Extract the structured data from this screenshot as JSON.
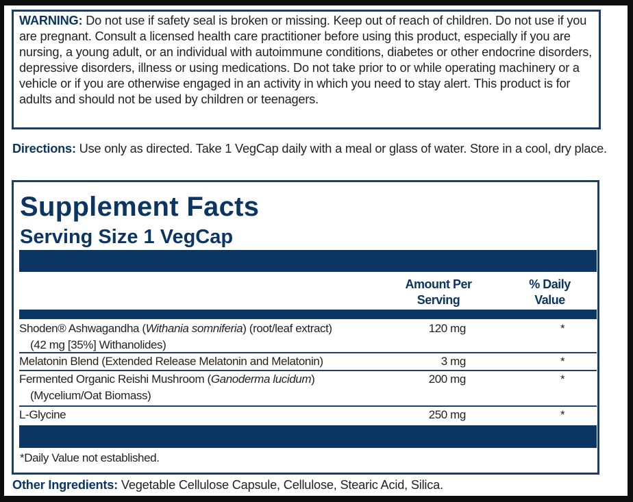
{
  "warning": {
    "label": "WARNING:",
    "text": " Do not use if safety seal is broken or missing. Keep out of reach of children. Do not use if you are pregnant. Consult a licensed health care practitioner before using this product, especially if you are nursing, a young adult, or an individual with autoimmune conditions, diabetes or other endocrine disorders, depressive disorders, illness or using medications. Do not take prior to or while operating machinery or a vehicle or if you are otherwise engaged in an activity in which you need to stay alert. This product is for adults and should not be used by children or teenagers."
  },
  "directions": {
    "label": "Directions:",
    "text": " Use only as directed. Take 1 VegCap daily with a meal or glass of water. Store in a cool, dry place."
  },
  "supplement_facts": {
    "title": "Supplement Facts",
    "serving_size": "Serving Size 1 VegCap",
    "header_amount": "Amount Per Serving",
    "header_dv": "% Daily Value",
    "rows": [
      {
        "pre": "Shoden® Ashwagandha (",
        "italic": "Withania somniferia",
        "post": ") (root/leaf extract)",
        "sub": "(42 mg [35%] Withanolides)",
        "amount": "120 mg",
        "dv": "*"
      },
      {
        "pre": "Melatonin Blend (Extended Release Melatonin and Melatonin)",
        "italic": "",
        "post": "",
        "sub": "",
        "amount": "3 mg",
        "dv": "*"
      },
      {
        "pre": "Fermented Organic Reishi Mushroom (",
        "italic": "Ganoderma lucidum",
        "post": ")",
        "sub": "(Mycelium/Oat Biomass)",
        "amount": "200 mg",
        "dv": "*"
      },
      {
        "pre": "L-Glycine",
        "italic": "",
        "post": "",
        "sub": "",
        "amount": "250 mg",
        "dv": "*"
      }
    ],
    "footnote": "*Daily Value not established."
  },
  "other_ingredients": {
    "label": "Other Ingredients:",
    "text": " Vegetable Cellulose Capsule, Cellulose, Stearic Acid, Silica."
  },
  "colors": {
    "navy": "#0b3563",
    "background": "#0d0d0d"
  }
}
